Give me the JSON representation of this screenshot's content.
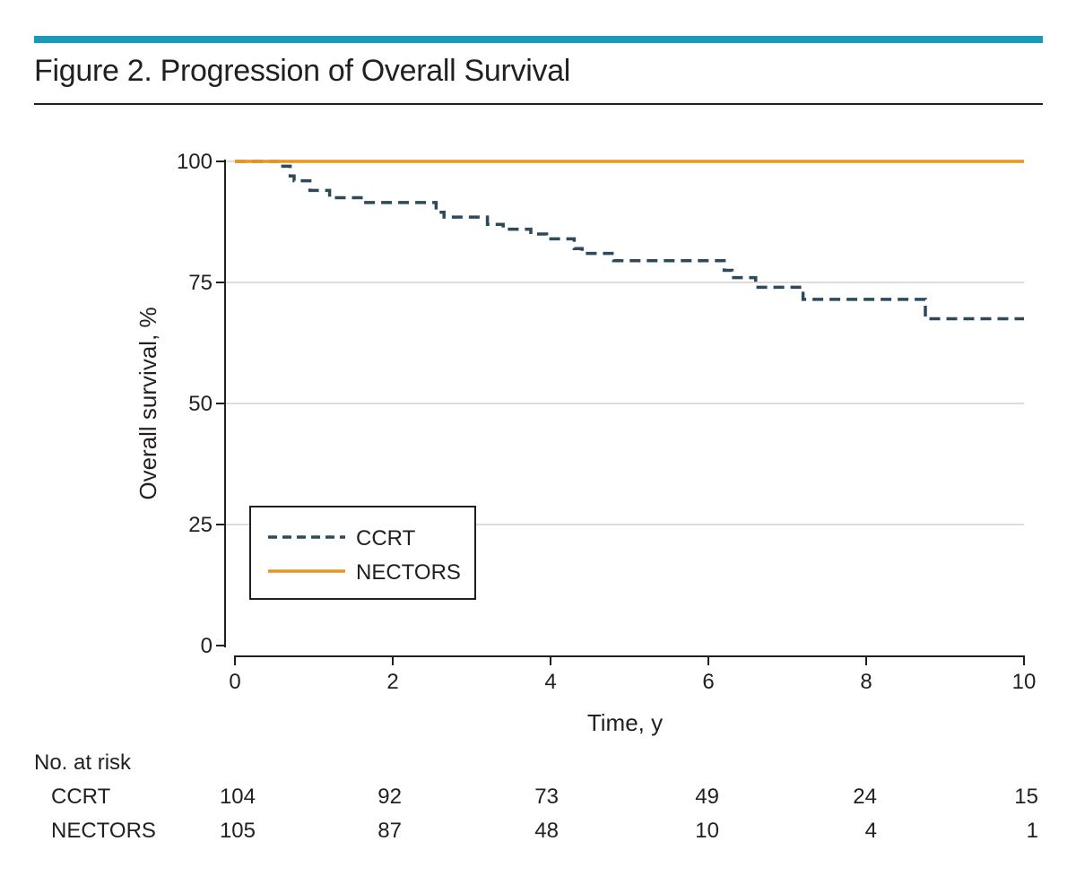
{
  "figure": {
    "title": "Figure 2. Progression of Overall Survival",
    "accent_color": "#1b9ab8"
  },
  "chart_data": {
    "type": "line",
    "step": true,
    "xlabel": "Time, y",
    "ylabel": "Overall survival, %",
    "xlim": [
      0,
      10
    ],
    "ylim": [
      0,
      100
    ],
    "x_ticks": [
      0,
      2,
      4,
      6,
      8,
      10
    ],
    "y_ticks": [
      0,
      25,
      50,
      75,
      100
    ],
    "horizontal_grid": true,
    "legend_position": "bottom-left",
    "series": [
      {
        "name": "CCRT",
        "color": "#2c4a5a",
        "dash": "dashed",
        "points": [
          [
            0,
            100
          ],
          [
            0.55,
            100
          ],
          [
            0.55,
            99
          ],
          [
            0.7,
            99
          ],
          [
            0.7,
            97
          ],
          [
            0.75,
            97
          ],
          [
            0.75,
            96
          ],
          [
            0.95,
            96
          ],
          [
            0.95,
            94
          ],
          [
            1.2,
            94
          ],
          [
            1.2,
            92.5
          ],
          [
            1.6,
            92.5
          ],
          [
            1.6,
            91.5
          ],
          [
            2.55,
            91.5
          ],
          [
            2.55,
            89.5
          ],
          [
            2.65,
            89.5
          ],
          [
            2.65,
            88.5
          ],
          [
            3.2,
            88.5
          ],
          [
            3.2,
            87
          ],
          [
            3.4,
            87
          ],
          [
            3.4,
            86
          ],
          [
            3.75,
            86
          ],
          [
            3.75,
            85
          ],
          [
            3.95,
            85
          ],
          [
            3.95,
            84
          ],
          [
            4.3,
            84
          ],
          [
            4.3,
            82
          ],
          [
            4.4,
            82
          ],
          [
            4.4,
            81
          ],
          [
            4.8,
            81
          ],
          [
            4.8,
            79.5
          ],
          [
            6.2,
            79.5
          ],
          [
            6.2,
            77.5
          ],
          [
            6.3,
            77.5
          ],
          [
            6.3,
            76
          ],
          [
            6.6,
            76
          ],
          [
            6.6,
            74
          ],
          [
            7.2,
            74
          ],
          [
            7.2,
            71.5
          ],
          [
            8.75,
            71.5
          ],
          [
            8.75,
            67.5
          ],
          [
            10,
            67.5
          ]
        ]
      },
      {
        "name": "NECTORS",
        "color": "#e8951c",
        "dash": "solid",
        "points": [
          [
            0,
            100
          ],
          [
            10,
            100
          ]
        ]
      }
    ],
    "risk_table": {
      "heading": "No. at risk",
      "time_points": [
        0,
        2,
        4,
        6,
        8,
        10
      ],
      "rows": [
        {
          "name": "CCRT",
          "values": [
            "104",
            "92",
            "73",
            "49",
            "24",
            "15"
          ]
        },
        {
          "name": "NECTORS",
          "values": [
            "105",
            "87",
            "48",
            "10",
            "4",
            "1"
          ]
        }
      ]
    }
  }
}
